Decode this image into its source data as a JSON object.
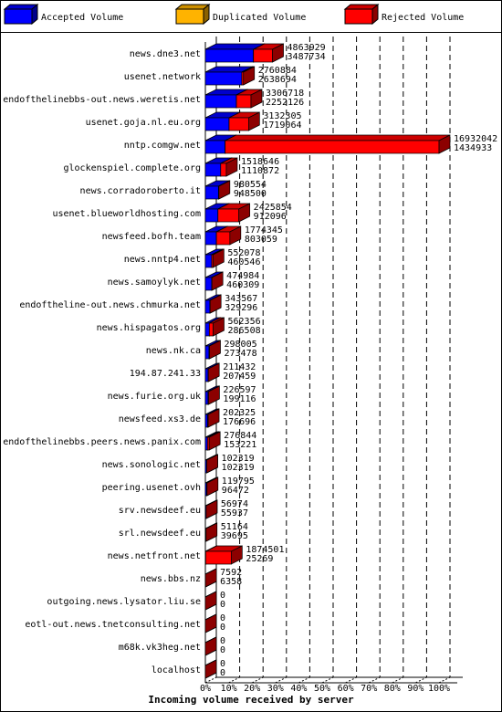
{
  "chart_data": {
    "type": "bar3d",
    "orientation": "horizontal",
    "stacked": true,
    "x_label": "Incoming volume received by server",
    "categories": [
      "news.dne3.net",
      "usenet.network",
      "endofthelinebbs-out.news.weretis.net",
      "usenet.goja.nl.eu.org",
      "nntp.comgw.net",
      "glockenspiel.complete.org",
      "news.corradoroberto.it",
      "usenet.blueworldhosting.com",
      "newsfeed.bofh.team",
      "news.nntp4.net",
      "news.samoylyk.net",
      "endoftheline-out.news.chmurka.net",
      "news.hispagatos.org",
      "news.nk.ca",
      "194.87.241.33",
      "news.furie.org.uk",
      "newsfeed.xs3.de",
      "endofthelinebbs.peers.news.panix.com",
      "news.sonologic.net",
      "peering.usenet.ovh",
      "srv.newsdeef.eu",
      "srl.newsdeef.eu",
      "news.netfront.net",
      "news.bbs.nz",
      "outgoing.news.lysator.liu.se",
      "eotl-out.news.tnetconsulting.net",
      "m68k.vk3heg.net",
      "localhost"
    ],
    "totals": [
      4863929,
      2760884,
      3306718,
      3132305,
      16932042,
      1518646,
      980554,
      2425854,
      1774345,
      552078,
      474984,
      343567,
      562356,
      298005,
      211432,
      226597,
      202325,
      276844,
      102319,
      119795,
      56974,
      51164,
      1874501,
      7592,
      0,
      0,
      0,
      0
    ],
    "series": [
      {
        "name": "Accepted Volume",
        "color": "#0000ff",
        "values": [
          3487734,
          2638694,
          2252126,
          1719064,
          1434933,
          1110872,
          948500,
          912096,
          803059,
          460546,
          460309,
          329296,
          286508,
          273478,
          207459,
          199116,
          176696,
          153221,
          102319,
          96472,
          55937,
          39695,
          25269,
          6358,
          0,
          0,
          0,
          0
        ]
      },
      {
        "name": "Duplicated Volume",
        "color": "#ffb300",
        "values": [
          0,
          0,
          0,
          0,
          0,
          0,
          0,
          0,
          0,
          0,
          0,
          0,
          0,
          0,
          0,
          0,
          0,
          0,
          0,
          0,
          0,
          0,
          0,
          0,
          0,
          0,
          0,
          0
        ]
      },
      {
        "name": "Rejected Volume",
        "color": "#ff0000",
        "values": [
          1376195,
          122190,
          1054592,
          1413241,
          15497109,
          407774,
          32054,
          1513758,
          971286,
          91532,
          14675,
          14271,
          275848,
          24527,
          3973,
          27481,
          25629,
          123623,
          0,
          23323,
          1037,
          11469,
          1849232,
          1234,
          0,
          0,
          0,
          0
        ]
      }
    ],
    "xlim": [
      0,
      16932042
    ],
    "xticks": [
      {
        "value": 0,
        "label": "0%"
      },
      {
        "value": 1693204.2,
        "label": "10%"
      },
      {
        "value": 3386408.4,
        "label": "20%"
      },
      {
        "value": 5079612.6,
        "label": "30%"
      },
      {
        "value": 6772816.8,
        "label": "40%"
      },
      {
        "value": 8466021,
        "label": "50%"
      },
      {
        "value": 10159225.2,
        "label": "60%"
      },
      {
        "value": 11852429.4,
        "label": "70%"
      },
      {
        "value": 13545633.6,
        "label": "80%"
      },
      {
        "value": 15238837.8,
        "label": "90%"
      },
      {
        "value": 16932042,
        "label": "100%"
      }
    ],
    "grid": true
  }
}
